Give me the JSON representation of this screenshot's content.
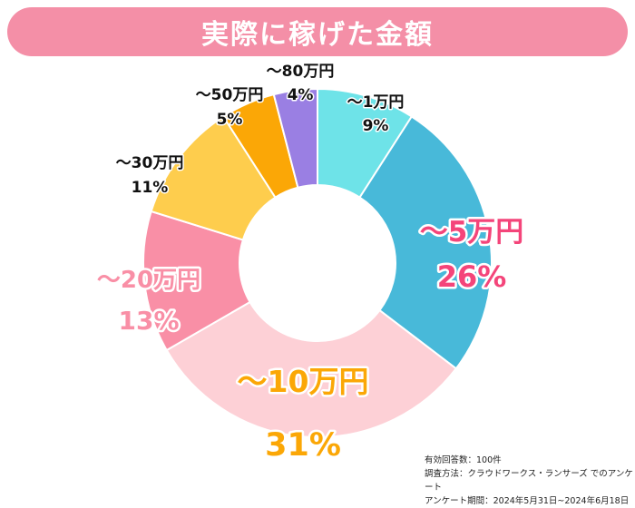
{
  "chart_data": {
    "type": "pie",
    "title": "実際に稼げた金額",
    "slices": [
      {
        "label": "～1万円",
        "value": 9,
        "pct_label": "9%",
        "color": "#6ee3e8"
      },
      {
        "label": "～5万円",
        "value": 26,
        "pct_label": "26%",
        "color": "#48b9d9"
      },
      {
        "label": "～10万円",
        "value": 31,
        "pct_label": "31%",
        "color": "#fdd0d6"
      },
      {
        "label": "～20万円",
        "value": 13,
        "pct_label": "13%",
        "color": "#f98fa6"
      },
      {
        "label": "～30万円",
        "value": 11,
        "pct_label": "11%",
        "color": "#fecd4d"
      },
      {
        "label": "～50万円",
        "value": 5,
        "pct_label": "5%",
        "color": "#fba706"
      },
      {
        "label": "～80万円",
        "value": 4,
        "pct_label": "4%",
        "color": "#9a7fe3"
      }
    ],
    "label_colors": {
      "～1万円": "#111111",
      "～5万円": "#f4457a",
      "～10万円": "#fba706",
      "～20万円": "#f98fa6",
      "～30万円": "#111111",
      "～50万円": "#111111",
      "～80万円": "#111111"
    }
  },
  "notes": [
    "有効回答数：100件",
    "調査方法：クラウドワークス・ランサーズ でのアンケート",
    "アンケート期間：2024年5月31日~2024年6月18日"
  ]
}
